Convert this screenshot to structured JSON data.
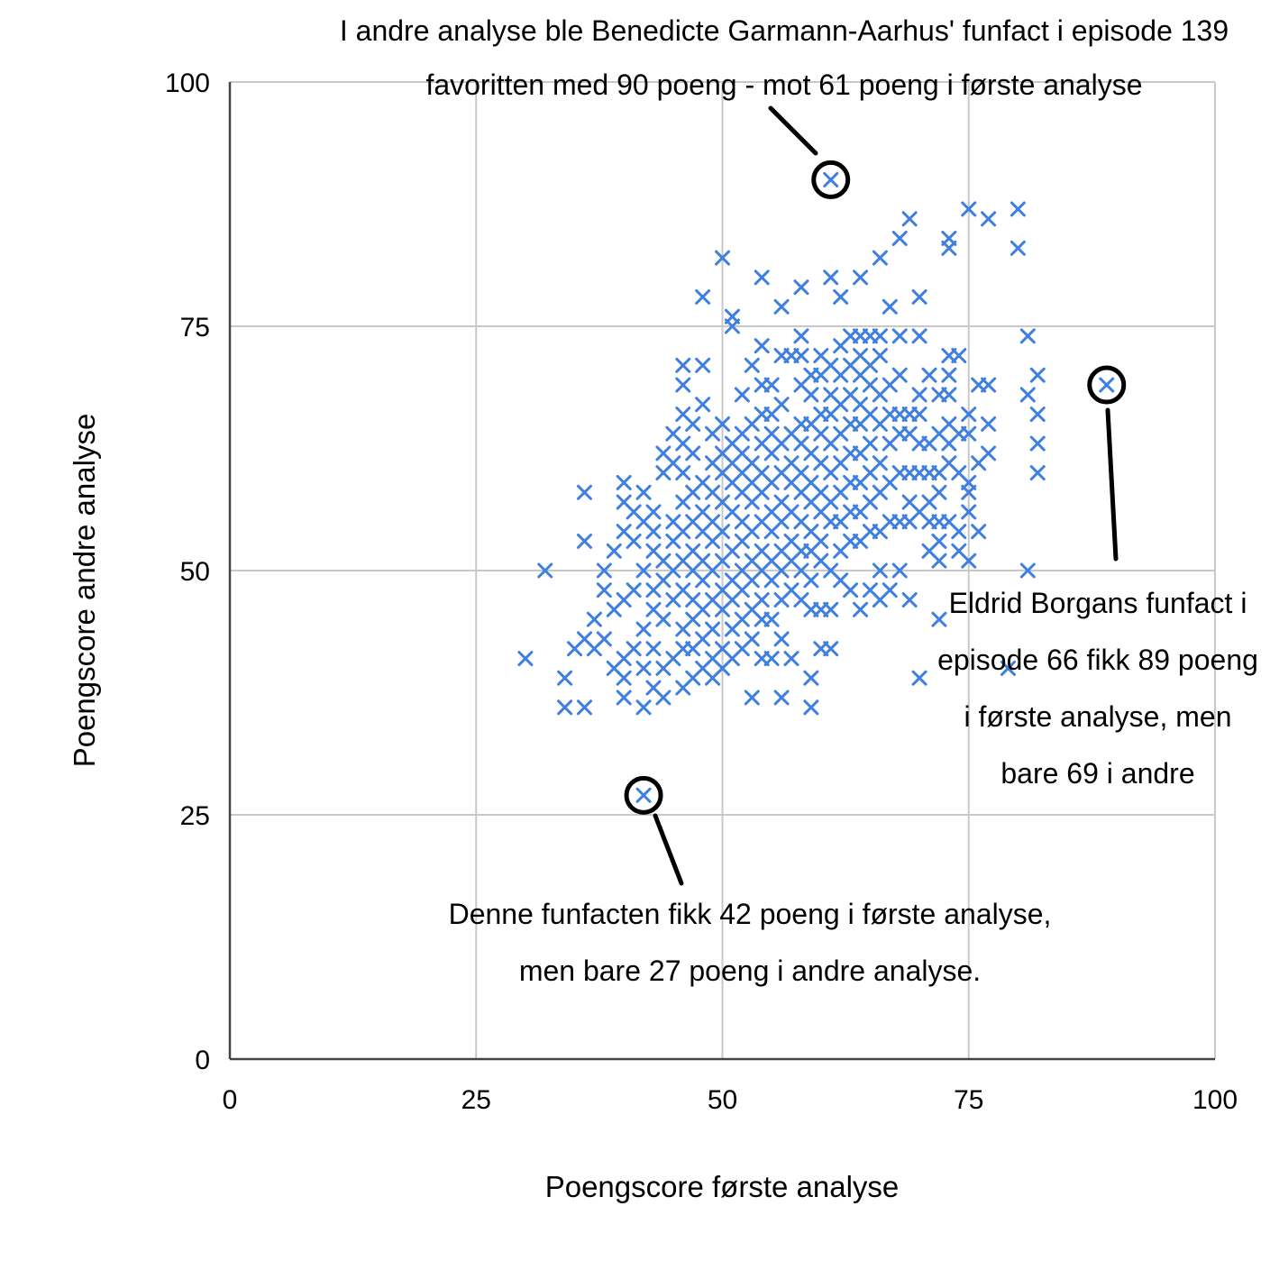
{
  "chart_data": {
    "type": "scatter",
    "xlabel": "Poengscore første analyse",
    "ylabel": "Poengscore andre analyse",
    "xlim": [
      0,
      100
    ],
    "ylim": [
      0,
      100
    ],
    "x_ticks": [
      "0",
      "25",
      "50",
      "75",
      "100"
    ],
    "y_ticks": [
      "0",
      "25",
      "50",
      "75",
      "100"
    ],
    "grid": true,
    "marker": "x",
    "series_color": "#3f7fe0",
    "annotations": [
      {
        "lines": [
          "I andre analyse ble Benedicte Garmann-Aarhus' funfact i episode 139",
          "favoritten med 90 poeng - mot 61 poeng i første analyse"
        ],
        "x": 61,
        "y": 90
      },
      {
        "lines": [
          "Eldrid Borgans funfact i",
          "episode 66 fikk 89 poeng",
          "i første analyse, men",
          "bare 69 i andre"
        ],
        "x": 89,
        "y": 69
      },
      {
        "lines": [
          "Denne funfacten fikk 42 poeng i første analyse,",
          "men bare 27 poeng i andre analyse."
        ],
        "x": 42,
        "y": 27
      }
    ],
    "points": [
      [
        61,
        90
      ],
      [
        42,
        27
      ],
      [
        89,
        69
      ],
      [
        30,
        41
      ],
      [
        32,
        50
      ],
      [
        34,
        36
      ],
      [
        34,
        39
      ],
      [
        35,
        42
      ],
      [
        36,
        36
      ],
      [
        36,
        43
      ],
      [
        36,
        53
      ],
      [
        36,
        58
      ],
      [
        37,
        42
      ],
      [
        37,
        45
      ],
      [
        38,
        43
      ],
      [
        38,
        48
      ],
      [
        38,
        50
      ],
      [
        39,
        40
      ],
      [
        39,
        46
      ],
      [
        39,
        52
      ],
      [
        40,
        37
      ],
      [
        40,
        39
      ],
      [
        40,
        41
      ],
      [
        40,
        47
      ],
      [
        40,
        54
      ],
      [
        40,
        57
      ],
      [
        40,
        59
      ],
      [
        41,
        42
      ],
      [
        41,
        48
      ],
      [
        41,
        53
      ],
      [
        41,
        56
      ],
      [
        42,
        36
      ],
      [
        42,
        40
      ],
      [
        42,
        44
      ],
      [
        42,
        50
      ],
      [
        42,
        55
      ],
      [
        42,
        58
      ],
      [
        43,
        38
      ],
      [
        43,
        42
      ],
      [
        43,
        46
      ],
      [
        43,
        48
      ],
      [
        43,
        52
      ],
      [
        43,
        54
      ],
      [
        43,
        56
      ],
      [
        44,
        37
      ],
      [
        44,
        40
      ],
      [
        44,
        45
      ],
      [
        44,
        49
      ],
      [
        44,
        51
      ],
      [
        44,
        60
      ],
      [
        44,
        62
      ],
      [
        45,
        41
      ],
      [
        45,
        47
      ],
      [
        45,
        50
      ],
      [
        45,
        53
      ],
      [
        45,
        55
      ],
      [
        45,
        61
      ],
      [
        45,
        64
      ],
      [
        46,
        38
      ],
      [
        46,
        42
      ],
      [
        46,
        44
      ],
      [
        46,
        48
      ],
      [
        46,
        51
      ],
      [
        46,
        54
      ],
      [
        46,
        57
      ],
      [
        46,
        60
      ],
      [
        46,
        63
      ],
      [
        46,
        66
      ],
      [
        46,
        69
      ],
      [
        46,
        71
      ],
      [
        47,
        39
      ],
      [
        47,
        42
      ],
      [
        47,
        45
      ],
      [
        47,
        47
      ],
      [
        47,
        50
      ],
      [
        47,
        52
      ],
      [
        47,
        55
      ],
      [
        47,
        58
      ],
      [
        47,
        62
      ],
      [
        47,
        65
      ],
      [
        48,
        40
      ],
      [
        48,
        43
      ],
      [
        48,
        46
      ],
      [
        48,
        49
      ],
      [
        48,
        51
      ],
      [
        48,
        54
      ],
      [
        48,
        56
      ],
      [
        48,
        59
      ],
      [
        48,
        67
      ],
      [
        48,
        71
      ],
      [
        48,
        78
      ],
      [
        49,
        39
      ],
      [
        49,
        41
      ],
      [
        49,
        44
      ],
      [
        49,
        47
      ],
      [
        49,
        50
      ],
      [
        49,
        53
      ],
      [
        49,
        55
      ],
      [
        49,
        58
      ],
      [
        49,
        61
      ],
      [
        49,
        64
      ],
      [
        50,
        40
      ],
      [
        50,
        42
      ],
      [
        50,
        46
      ],
      [
        50,
        48
      ],
      [
        50,
        51
      ],
      [
        50,
        54
      ],
      [
        50,
        57
      ],
      [
        50,
        60
      ],
      [
        50,
        62
      ],
      [
        50,
        65
      ],
      [
        50,
        82
      ],
      [
        51,
        41
      ],
      [
        51,
        44
      ],
      [
        51,
        47
      ],
      [
        51,
        49
      ],
      [
        51,
        52
      ],
      [
        51,
        56
      ],
      [
        51,
        59
      ],
      [
        51,
        61
      ],
      [
        51,
        63
      ],
      [
        51,
        75
      ],
      [
        51,
        76
      ],
      [
        52,
        42
      ],
      [
        52,
        45
      ],
      [
        52,
        48
      ],
      [
        52,
        50
      ],
      [
        52,
        53
      ],
      [
        52,
        55
      ],
      [
        52,
        58
      ],
      [
        52,
        60
      ],
      [
        52,
        62
      ],
      [
        52,
        64
      ],
      [
        52,
        68
      ],
      [
        53,
        37
      ],
      [
        53,
        43
      ],
      [
        53,
        46
      ],
      [
        53,
        49
      ],
      [
        53,
        51
      ],
      [
        53,
        54
      ],
      [
        53,
        57
      ],
      [
        53,
        59
      ],
      [
        53,
        61
      ],
      [
        53,
        65
      ],
      [
        53,
        71
      ],
      [
        54,
        41
      ],
      [
        54,
        45
      ],
      [
        54,
        47
      ],
      [
        54,
        50
      ],
      [
        54,
        52
      ],
      [
        54,
        55
      ],
      [
        54,
        58
      ],
      [
        54,
        60
      ],
      [
        54,
        63
      ],
      [
        54,
        66
      ],
      [
        54,
        69
      ],
      [
        54,
        73
      ],
      [
        54,
        80
      ],
      [
        55,
        41
      ],
      [
        55,
        45
      ],
      [
        55,
        49
      ],
      [
        55,
        51
      ],
      [
        55,
        54
      ],
      [
        55,
        56
      ],
      [
        55,
        59
      ],
      [
        55,
        62
      ],
      [
        55,
        64
      ],
      [
        55,
        66
      ],
      [
        55,
        69
      ],
      [
        56,
        37
      ],
      [
        56,
        43
      ],
      [
        56,
        47
      ],
      [
        56,
        50
      ],
      [
        56,
        52
      ],
      [
        56,
        55
      ],
      [
        56,
        57
      ],
      [
        56,
        60
      ],
      [
        56,
        63
      ],
      [
        56,
        67
      ],
      [
        56,
        72
      ],
      [
        56,
        77
      ],
      [
        57,
        41
      ],
      [
        57,
        48
      ],
      [
        57,
        51
      ],
      [
        57,
        53
      ],
      [
        57,
        56
      ],
      [
        57,
        59
      ],
      [
        57,
        61
      ],
      [
        57,
        64
      ],
      [
        57,
        72
      ],
      [
        58,
        47
      ],
      [
        58,
        50
      ],
      [
        58,
        52
      ],
      [
        58,
        55
      ],
      [
        58,
        58
      ],
      [
        58,
        60
      ],
      [
        58,
        63
      ],
      [
        58,
        65
      ],
      [
        58,
        69
      ],
      [
        58,
        72
      ],
      [
        58,
        74
      ],
      [
        58,
        79
      ],
      [
        59,
        36
      ],
      [
        59,
        39
      ],
      [
        59,
        46
      ],
      [
        59,
        49
      ],
      [
        59,
        52
      ],
      [
        59,
        54
      ],
      [
        59,
        57
      ],
      [
        59,
        59
      ],
      [
        59,
        62
      ],
      [
        59,
        65
      ],
      [
        59,
        68
      ],
      [
        59,
        70
      ],
      [
        60,
        42
      ],
      [
        60,
        46
      ],
      [
        60,
        51
      ],
      [
        60,
        53
      ],
      [
        60,
        56
      ],
      [
        60,
        58
      ],
      [
        60,
        61
      ],
      [
        60,
        64
      ],
      [
        60,
        66
      ],
      [
        60,
        70
      ],
      [
        60,
        72
      ],
      [
        61,
        42
      ],
      [
        61,
        46
      ],
      [
        61,
        50
      ],
      [
        61,
        55
      ],
      [
        61,
        57
      ],
      [
        61,
        60
      ],
      [
        61,
        63
      ],
      [
        61,
        66
      ],
      [
        61,
        68
      ],
      [
        61,
        71
      ],
      [
        61,
        80
      ],
      [
        62,
        49
      ],
      [
        62,
        52
      ],
      [
        62,
        55
      ],
      [
        62,
        58
      ],
      [
        62,
        61
      ],
      [
        62,
        64
      ],
      [
        62,
        67
      ],
      [
        62,
        70
      ],
      [
        62,
        73
      ],
      [
        62,
        78
      ],
      [
        63,
        48
      ],
      [
        63,
        53
      ],
      [
        63,
        56
      ],
      [
        63,
        59
      ],
      [
        63,
        62
      ],
      [
        63,
        65
      ],
      [
        63,
        68
      ],
      [
        63,
        71
      ],
      [
        63,
        74
      ],
      [
        64,
        46
      ],
      [
        64,
        53
      ],
      [
        64,
        56
      ],
      [
        64,
        59
      ],
      [
        64,
        62
      ],
      [
        64,
        65
      ],
      [
        64,
        67
      ],
      [
        64,
        70
      ],
      [
        64,
        72
      ],
      [
        64,
        74
      ],
      [
        64,
        80
      ],
      [
        65,
        48
      ],
      [
        65,
        54
      ],
      [
        65,
        57
      ],
      [
        65,
        60
      ],
      [
        65,
        63
      ],
      [
        65,
        66
      ],
      [
        65,
        69
      ],
      [
        65,
        71
      ],
      [
        65,
        74
      ],
      [
        66,
        47
      ],
      [
        66,
        50
      ],
      [
        66,
        54
      ],
      [
        66,
        58
      ],
      [
        66,
        61
      ],
      [
        66,
        65
      ],
      [
        66,
        68
      ],
      [
        66,
        72
      ],
      [
        66,
        74
      ],
      [
        66,
        82
      ],
      [
        67,
        48
      ],
      [
        67,
        55
      ],
      [
        67,
        59
      ],
      [
        67,
        63
      ],
      [
        67,
        66
      ],
      [
        67,
        69
      ],
      [
        67,
        77
      ],
      [
        68,
        50
      ],
      [
        68,
        55
      ],
      [
        68,
        60
      ],
      [
        68,
        64
      ],
      [
        68,
        66
      ],
      [
        68,
        70
      ],
      [
        68,
        74
      ],
      [
        68,
        84
      ],
      [
        69,
        47
      ],
      [
        69,
        55
      ],
      [
        69,
        57
      ],
      [
        69,
        60
      ],
      [
        69,
        64
      ],
      [
        69,
        66
      ],
      [
        69,
        86
      ],
      [
        70,
        39
      ],
      [
        70,
        56
      ],
      [
        70,
        60
      ],
      [
        70,
        63
      ],
      [
        70,
        66
      ],
      [
        70,
        68
      ],
      [
        70,
        74
      ],
      [
        70,
        78
      ],
      [
        71,
        52
      ],
      [
        71,
        55
      ],
      [
        71,
        57
      ],
      [
        71,
        60
      ],
      [
        71,
        63
      ],
      [
        71,
        70
      ],
      [
        72,
        45
      ],
      [
        72,
        51
      ],
      [
        72,
        53
      ],
      [
        72,
        55
      ],
      [
        72,
        58
      ],
      [
        72,
        60
      ],
      [
        72,
        64
      ],
      [
        72,
        68
      ],
      [
        73,
        55
      ],
      [
        73,
        61
      ],
      [
        73,
        63
      ],
      [
        73,
        65
      ],
      [
        73,
        68
      ],
      [
        73,
        70
      ],
      [
        73,
        72
      ],
      [
        73,
        83
      ],
      [
        73,
        84
      ],
      [
        74,
        52
      ],
      [
        74,
        54
      ],
      [
        74,
        60
      ],
      [
        74,
        64
      ],
      [
        74,
        72
      ],
      [
        75,
        51
      ],
      [
        75,
        56
      ],
      [
        75,
        58
      ],
      [
        75,
        59
      ],
      [
        75,
        64
      ],
      [
        75,
        66
      ],
      [
        75,
        87
      ],
      [
        76,
        54
      ],
      [
        76,
        61
      ],
      [
        76,
        69
      ],
      [
        77,
        62
      ],
      [
        77,
        65
      ],
      [
        77,
        69
      ],
      [
        77,
        86
      ],
      [
        79,
        40
      ],
      [
        80,
        83
      ],
      [
        80,
        87
      ],
      [
        81,
        50
      ],
      [
        81,
        68
      ],
      [
        81,
        74
      ],
      [
        82,
        60
      ],
      [
        82,
        63
      ],
      [
        82,
        66
      ],
      [
        82,
        70
      ]
    ]
  }
}
